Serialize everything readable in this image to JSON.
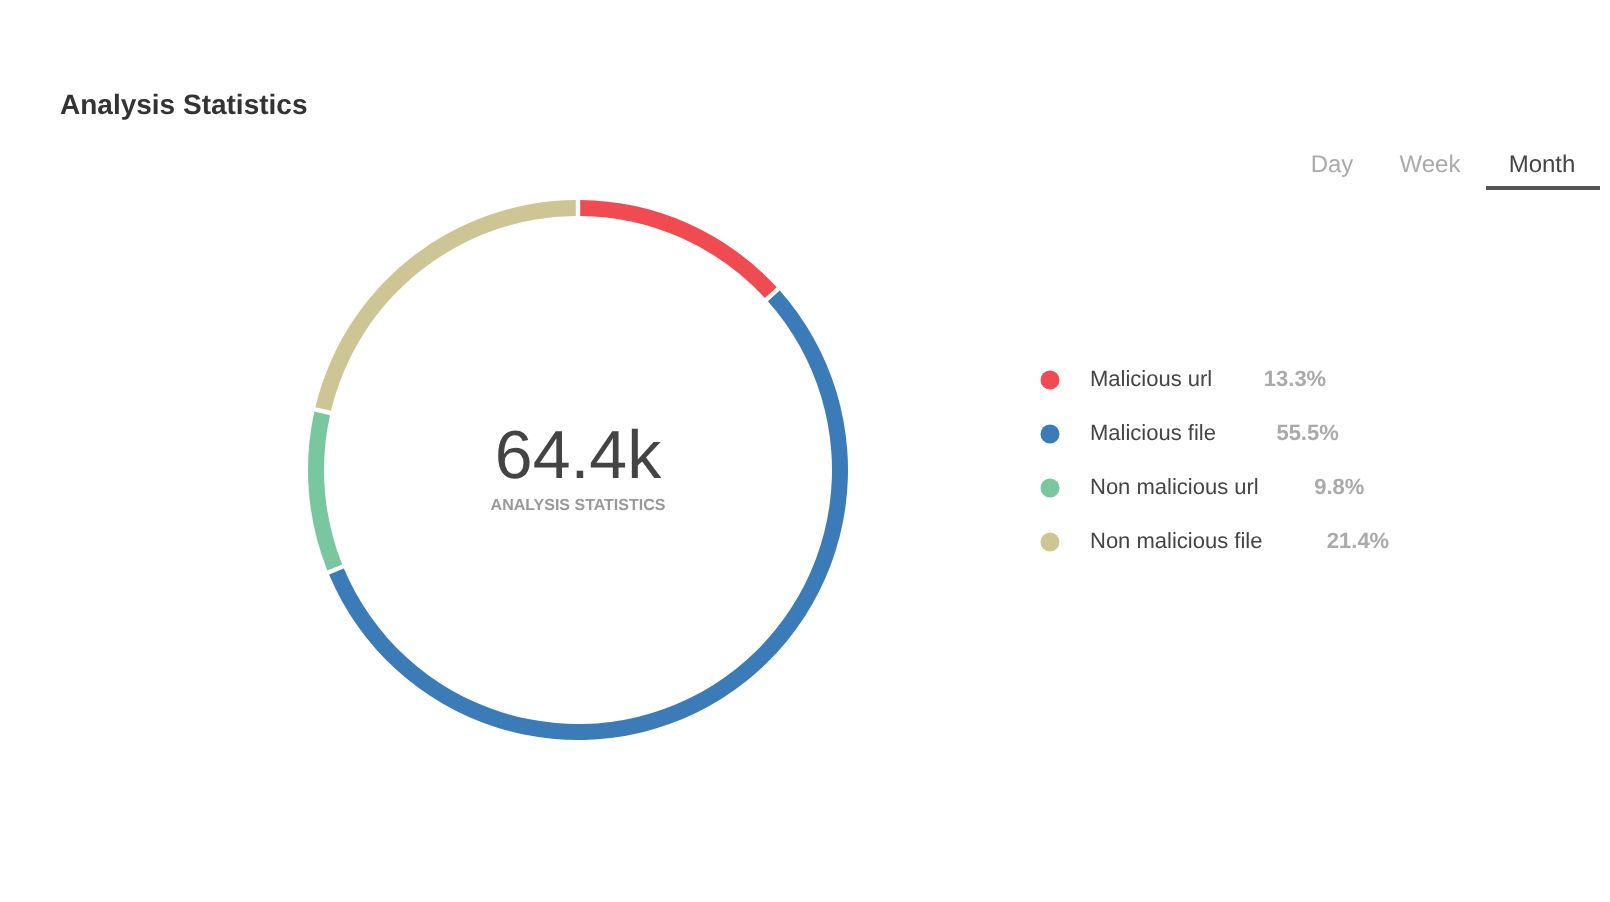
{
  "chart_data": {
    "type": "donut",
    "title": "Analysis Statistics",
    "categories": [
      "Malicious url",
      "Malicious file",
      "Non malicious url",
      "Non malicious file"
    ],
    "values": [
      13.3,
      55.5,
      9.8,
      21.4
    ],
    "value_labels": [
      "13.3%",
      "55.5%",
      "9.8%",
      "21.4%"
    ],
    "colors": [
      "#ef4b50",
      "#3a7bb8",
      "#79c79f",
      "#cdc694"
    ],
    "legend": "right",
    "annotations": [
      "64.4k",
      "ANALYSIS STATISTICS",
      "Day",
      "Week",
      "Month"
    ]
  }
}
